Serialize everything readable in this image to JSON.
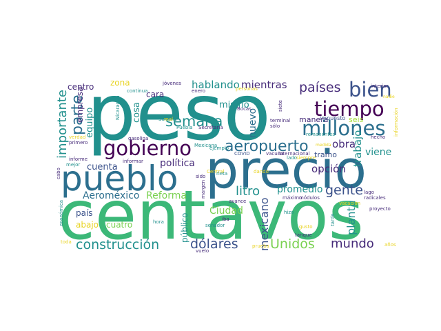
{
  "palette": {
    "green": "#3cb878",
    "teal": "#21908d",
    "blue": "#2c6f8e",
    "darkblue": "#3b528b",
    "purple": "#472c7a",
    "violet": "#440154",
    "lightgreen": "#7ad151",
    "yellow": "#e8d321",
    "yellowgreen": "#a5db36"
  },
  "words": [
    {
      "text": "peso",
      "color": "teal"
    },
    {
      "text": "centavos",
      "color": "green"
    },
    {
      "text": "precio",
      "color": "blue"
    },
    {
      "text": "pueblo",
      "color": "blue"
    },
    {
      "text": "gobierno",
      "color": "violet"
    },
    {
      "text": "millones",
      "color": "blue"
    },
    {
      "text": "tiempo",
      "color": "violet"
    },
    {
      "text": "bien",
      "color": "darkblue"
    },
    {
      "text": "aeropuerto",
      "color": "blue"
    },
    {
      "text": "construcción",
      "color": "teal"
    },
    {
      "text": "países",
      "color": "purple"
    },
    {
      "text": "parte",
      "color": "blue"
    },
    {
      "text": "importante",
      "color": "teal"
    },
    {
      "text": "semana",
      "color": "teal"
    },
    {
      "text": "litro",
      "color": "teal"
    },
    {
      "text": "gente",
      "color": "darkblue"
    },
    {
      "text": "dólares",
      "color": "darkblue"
    },
    {
      "text": "Unidos",
      "color": "lightgreen"
    },
    {
      "text": "mundo",
      "color": "purple"
    },
    {
      "text": "hablando",
      "color": "teal"
    },
    {
      "text": "mientras",
      "color": "purple"
    },
    {
      "text": "mexicano",
      "color": "darkblue"
    },
    {
      "text": "Ciudad",
      "color": "lightgreen"
    },
    {
      "text": "Reforma",
      "color": "lightgreen"
    },
    {
      "text": "Aeroméxico",
      "color": "blue"
    },
    {
      "text": "opción",
      "color": "purple"
    },
    {
      "text": "promedio",
      "color": "teal"
    },
    {
      "text": "planta",
      "color": "teal"
    },
    {
      "text": "trabajo",
      "color": "teal"
    },
    {
      "text": "viene",
      "color": "teal"
    },
    {
      "text": "obra",
      "color": "purple"
    },
    {
      "text": "política",
      "color": "purple"
    },
    {
      "text": "mismo",
      "color": "teal"
    },
    {
      "text": "nuevo",
      "color": "blue"
    },
    {
      "text": "cosa",
      "color": "teal"
    },
    {
      "text": "equipo",
      "color": "teal"
    },
    {
      "text": "empresa",
      "color": "purple"
    },
    {
      "text": "centro",
      "color": "purple"
    },
    {
      "text": "cara",
      "color": "purple"
    },
    {
      "text": "zona",
      "color": "yellow"
    },
    {
      "text": "cuenta",
      "color": "darkblue"
    },
    {
      "text": "país",
      "color": "darkblue"
    },
    {
      "text": "abajo",
      "color": "yellow"
    },
    {
      "text": "cuatro",
      "color": "lightgreen"
    },
    {
      "text": "público",
      "color": "teal"
    },
    {
      "text": "manera",
      "color": "purple"
    },
    {
      "text": "tramo",
      "color": "darkblue"
    },
    {
      "text": "seis",
      "color": "yellowgreen"
    },
    {
      "text": "jóvenes",
      "color": "purple"
    },
    {
      "text": "impuesto",
      "color": "darkblue"
    },
    {
      "text": "Mexicana",
      "color": "teal"
    },
    {
      "text": "gasolina",
      "color": "purple"
    },
    {
      "text": "informar",
      "color": "purple"
    },
    {
      "text": "Nicaragua",
      "color": "teal"
    },
    {
      "text": "Bocas",
      "color": "purple"
    },
    {
      "text": "Puebla",
      "color": "teal"
    },
    {
      "text": "Secretaría",
      "color": "purple"
    },
    {
      "text": "terminal",
      "color": "purple"
    },
    {
      "text": "sólo",
      "color": "purple"
    },
    {
      "text": "siete",
      "color": "purple"
    },
    {
      "text": "COVID",
      "color": "darkblue"
    },
    {
      "text": "vacuna",
      "color": "purple"
    },
    {
      "text": "internacional",
      "color": "purple"
    },
    {
      "text": "margen",
      "color": "purple"
    },
    {
      "text": "módulos",
      "color": "purple"
    },
    {
      "text": "máximo",
      "color": "purple"
    },
    {
      "text": "lago",
      "color": "purple"
    },
    {
      "text": "radicales",
      "color": "purple"
    },
    {
      "text": "proyecto",
      "color": "purple"
    },
    {
      "text": "tarde",
      "color": "teal"
    },
    {
      "text": "gusto",
      "color": "yellow"
    },
    {
      "text": "tanque",
      "color": "purple"
    },
    {
      "text": "senador",
      "color": "teal"
    },
    {
      "text": "Soriana",
      "color": "teal"
    },
    {
      "text": "continua",
      "color": "teal"
    },
    {
      "text": "enero",
      "color": "purple"
    },
    {
      "text": "interior",
      "color": "purple"
    },
    {
      "text": "hecho",
      "color": "purple"
    },
    {
      "text": "informe",
      "color": "purple"
    },
    {
      "text": "primero",
      "color": "purple"
    },
    {
      "text": "verdad",
      "color": "yellow"
    },
    {
      "text": "mejor",
      "color": "teal"
    },
    {
      "text": "cabo",
      "color": "purple"
    },
    {
      "text": "económica",
      "color": "teal"
    },
    {
      "text": "toda",
      "color": "yellow"
    },
    {
      "text": "hora",
      "color": "teal"
    },
    {
      "text": "vuelo",
      "color": "purple"
    },
    {
      "text": "iba",
      "color": "purple"
    },
    {
      "text": "avance",
      "color": "purple"
    },
    {
      "text": "prueba",
      "color": "yellow"
    },
    {
      "text": "años",
      "color": "yellow"
    },
    {
      "text": "siempre",
      "color": "yellow"
    },
    {
      "text": "sido",
      "color": "purple"
    },
    {
      "text": "ejemplo",
      "color": "teal"
    },
    {
      "text": "dando",
      "color": "yellow"
    },
    {
      "text": "lado",
      "color": "teal"
    },
    {
      "text": "Central",
      "color": "yellow"
    },
    {
      "text": "remanentes",
      "color": "teal"
    },
    {
      "text": "ir",
      "color": "purple"
    },
    {
      "text": "medida",
      "color": "yellow"
    },
    {
      "text": "personas",
      "color": "yellow"
    },
    {
      "text": "información",
      "color": "yellow"
    },
    {
      "text": "nadie",
      "color": "yellow"
    },
    {
      "text": "vacación",
      "color": "yellow"
    },
    {
      "text": "hizo",
      "color": "teal"
    },
    {
      "text": "rieta",
      "color": "teal"
    },
    {
      "text": "mal",
      "color": "yellow"
    }
  ]
}
